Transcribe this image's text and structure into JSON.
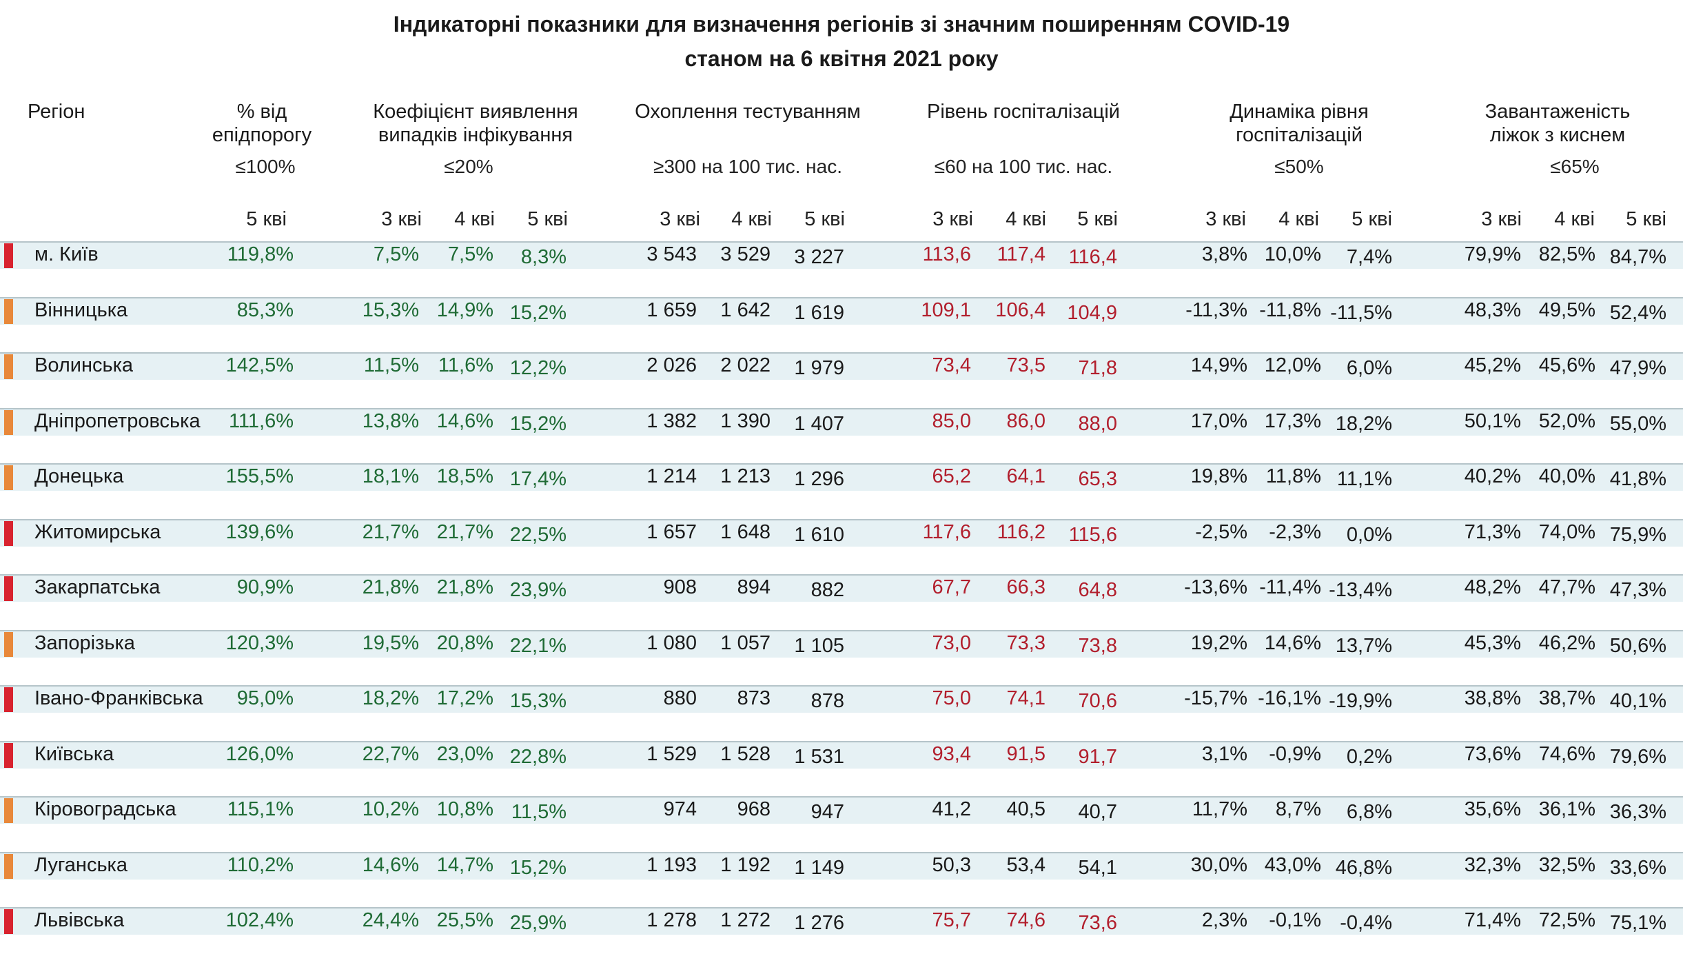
{
  "title": {
    "line1": "Індикаторні показники для визначення регіонів зі значним поширенням COVID-19",
    "line2": "станом на 6 квітня 2021 року"
  },
  "header": {
    "region": "Регіон",
    "epi_line1": "% від",
    "epi_line2": "епідпорогу",
    "detect_line1": "Коефіцієнт виявлення",
    "detect_line2": "випадків інфікування",
    "testing": "Охоплення тестуванням",
    "hosp": "Рівень госпіталізацій",
    "dyn_line1": "Динаміка рівня",
    "dyn_line2": "госпіталізацій",
    "beds_line1": "Завантаженість",
    "beds_line2": "ліжок з киснем"
  },
  "thresholds": {
    "epi": "≤100%",
    "detect": "≤20%",
    "testing": "≥300 на 100 тис. нас.",
    "hosp": "≤60 на 100 тис. нас.",
    "dyn": "≤50%",
    "beds": "≤65%"
  },
  "days": {
    "d3": "3 кві",
    "d4": "4 кві",
    "d5": "5 кві"
  },
  "colors": {
    "band": "#e6f1f4",
    "red_marker": "#d8232f",
    "orange_marker": "#e8883a",
    "green_text": "#1f6b35",
    "red_text": "#b21f2d",
    "dark_text": "#1a1a1a"
  },
  "chart_data": {
    "type": "table",
    "columns": [
      "Регіон",
      "% від епідпорогу",
      "Коефіцієнт виявлення випадків інфікування",
      "Охоплення тестуванням",
      "Рівень госпіталізацій",
      "Динаміка рівня госпіталізацій",
      "Завантаженість ліжок з киснем"
    ],
    "rows": [
      {
        "region": "м. Київ",
        "status": "red",
        "epi": "119,8%",
        "detect": [
          "7,5%",
          "7,5%",
          "8,3%"
        ],
        "testing": [
          "3 543",
          "3 529",
          "3 227"
        ],
        "hosp": [
          "113,6",
          "117,4",
          "116,4"
        ],
        "dyn": [
          "3,8%",
          "10,0%",
          "7,4%"
        ],
        "beds": [
          "79,9%",
          "82,5%",
          "84,7%"
        ]
      },
      {
        "region": "Вінницька",
        "status": "orange",
        "epi": "85,3%",
        "detect": [
          "15,3%",
          "14,9%",
          "15,2%"
        ],
        "testing": [
          "1 659",
          "1 642",
          "1 619"
        ],
        "hosp": [
          "109,1",
          "106,4",
          "104,9"
        ],
        "dyn": [
          "-11,3%",
          "-11,8%",
          "-11,5%"
        ],
        "beds": [
          "48,3%",
          "49,5%",
          "52,4%"
        ]
      },
      {
        "region": "Волинська",
        "status": "orange",
        "epi": "142,5%",
        "detect": [
          "11,5%",
          "11,6%",
          "12,2%"
        ],
        "testing": [
          "2 026",
          "2 022",
          "1 979"
        ],
        "hosp": [
          "73,4",
          "73,5",
          "71,8"
        ],
        "dyn": [
          "14,9%",
          "12,0%",
          "6,0%"
        ],
        "beds": [
          "45,2%",
          "45,6%",
          "47,9%"
        ]
      },
      {
        "region": "Дніпропетровська",
        "status": "orange",
        "epi": "111,6%",
        "detect": [
          "13,8%",
          "14,6%",
          "15,2%"
        ],
        "testing": [
          "1 382",
          "1 390",
          "1 407"
        ],
        "hosp": [
          "85,0",
          "86,0",
          "88,0"
        ],
        "dyn": [
          "17,0%",
          "17,3%",
          "18,2%"
        ],
        "beds": [
          "50,1%",
          "52,0%",
          "55,0%"
        ]
      },
      {
        "region": "Донецька",
        "status": "orange",
        "epi": "155,5%",
        "detect": [
          "18,1%",
          "18,5%",
          "17,4%"
        ],
        "testing": [
          "1 214",
          "1 213",
          "1 296"
        ],
        "hosp": [
          "65,2",
          "64,1",
          "65,3"
        ],
        "dyn": [
          "19,8%",
          "11,8%",
          "11,1%"
        ],
        "beds": [
          "40,2%",
          "40,0%",
          "41,8%"
        ]
      },
      {
        "region": "Житомирська",
        "status": "red",
        "epi": "139,6%",
        "detect": [
          "21,7%",
          "21,7%",
          "22,5%"
        ],
        "testing": [
          "1 657",
          "1 648",
          "1 610"
        ],
        "hosp": [
          "117,6",
          "116,2",
          "115,6"
        ],
        "dyn": [
          "-2,5%",
          "-2,3%",
          "0,0%"
        ],
        "beds": [
          "71,3%",
          "74,0%",
          "75,9%"
        ]
      },
      {
        "region": "Закарпатська",
        "status": "red",
        "epi": "90,9%",
        "detect": [
          "21,8%",
          "21,8%",
          "23,9%"
        ],
        "testing": [
          "908",
          "894",
          "882"
        ],
        "hosp": [
          "67,7",
          "66,3",
          "64,8"
        ],
        "dyn": [
          "-13,6%",
          "-11,4%",
          "-13,4%"
        ],
        "beds": [
          "48,2%",
          "47,7%",
          "47,3%"
        ]
      },
      {
        "region": "Запорізька",
        "status": "orange",
        "epi": "120,3%",
        "detect": [
          "19,5%",
          "20,8%",
          "22,1%"
        ],
        "testing": [
          "1 080",
          "1 057",
          "1 105"
        ],
        "hosp": [
          "73,0",
          "73,3",
          "73,8"
        ],
        "dyn": [
          "19,2%",
          "14,6%",
          "13,7%"
        ],
        "beds": [
          "45,3%",
          "46,2%",
          "50,6%"
        ]
      },
      {
        "region": "Івано-Франківська",
        "status": "red",
        "epi": "95,0%",
        "detect": [
          "18,2%",
          "17,2%",
          "15,3%"
        ],
        "testing": [
          "880",
          "873",
          "878"
        ],
        "hosp": [
          "75,0",
          "74,1",
          "70,6"
        ],
        "dyn": [
          "-15,7%",
          "-16,1%",
          "-19,9%"
        ],
        "beds": [
          "38,8%",
          "38,7%",
          "40,1%"
        ]
      },
      {
        "region": "Київська",
        "status": "red",
        "epi": "126,0%",
        "detect": [
          "22,7%",
          "23,0%",
          "22,8%"
        ],
        "testing": [
          "1 529",
          "1 528",
          "1 531"
        ],
        "hosp": [
          "93,4",
          "91,5",
          "91,7"
        ],
        "dyn": [
          "3,1%",
          "-0,9%",
          "0,2%"
        ],
        "beds": [
          "73,6%",
          "74,6%",
          "79,6%"
        ]
      },
      {
        "region": "Кіровоградська",
        "status": "orange",
        "epi": "115,1%",
        "detect": [
          "10,2%",
          "10,8%",
          "11,5%"
        ],
        "testing": [
          "974",
          "968",
          "947"
        ],
        "hosp": [
          "41,2",
          "40,5",
          "40,7"
        ],
        "dyn": [
          "11,7%",
          "8,7%",
          "6,8%"
        ],
        "beds": [
          "35,6%",
          "36,1%",
          "36,3%"
        ]
      },
      {
        "region": "Луганська",
        "status": "orange",
        "epi": "110,2%",
        "detect": [
          "14,6%",
          "14,7%",
          "15,2%"
        ],
        "testing": [
          "1 193",
          "1 192",
          "1 149"
        ],
        "hosp": [
          "50,3",
          "53,4",
          "54,1"
        ],
        "dyn": [
          "30,0%",
          "43,0%",
          "46,8%"
        ],
        "beds": [
          "32,3%",
          "32,5%",
          "33,6%"
        ]
      },
      {
        "region": "Львівська",
        "status": "red",
        "epi": "102,4%",
        "detect": [
          "24,4%",
          "25,5%",
          "25,9%"
        ],
        "testing": [
          "1 278",
          "1 272",
          "1 276"
        ],
        "hosp": [
          "75,7",
          "74,6",
          "73,6"
        ],
        "dyn": [
          "2,3%",
          "-0,1%",
          "-0,4%"
        ],
        "beds": [
          "71,4%",
          "72,5%",
          "75,1%"
        ]
      }
    ]
  }
}
